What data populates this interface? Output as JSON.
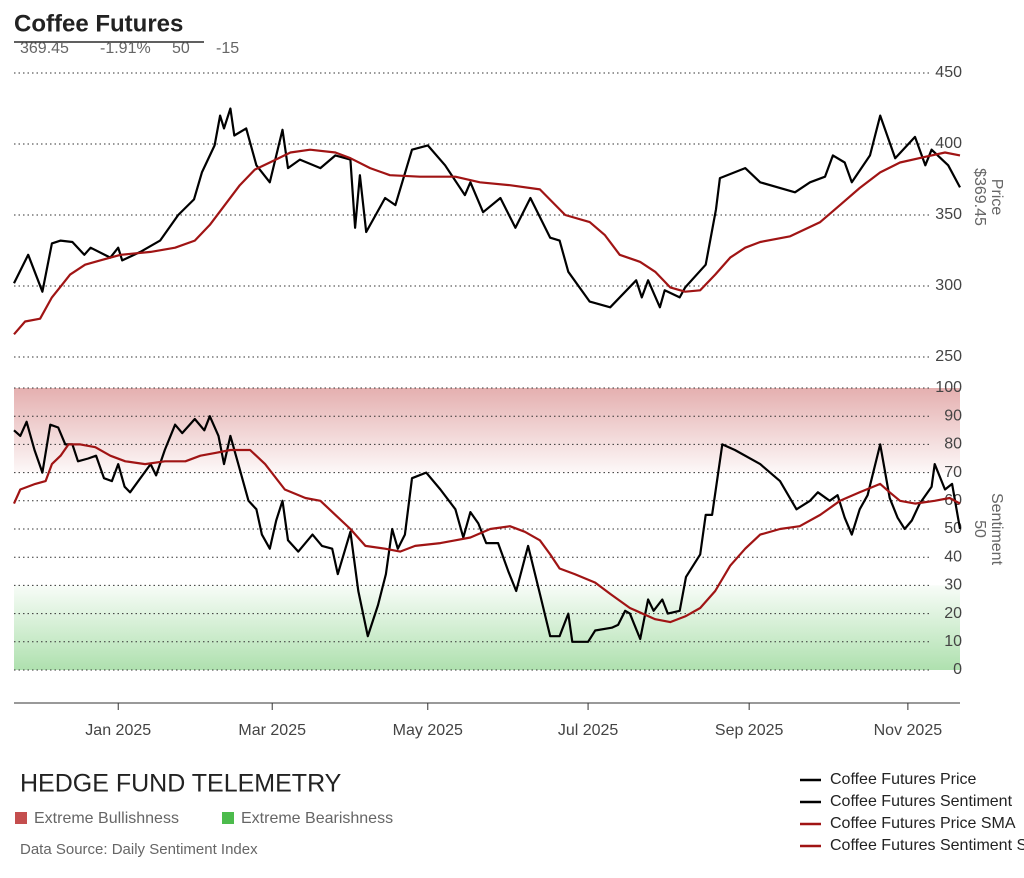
{
  "header": {
    "title": "Coffee Futures",
    "stats": [
      "369.45",
      "-1.91%",
      "50",
      "-15"
    ]
  },
  "brand": "HEDGE FUND TELEMETRY",
  "source": "Data Source: Daily Sentiment Index",
  "chart_data": [
    {
      "type": "line",
      "y_label": "Price",
      "last_label": "$369.45",
      "xlim": [
        -1.32,
        10.66
      ],
      "ylim": [
        250,
        450
      ],
      "yticks": [
        250,
        300,
        350,
        400,
        450
      ],
      "grid": true,
      "series": [
        {
          "name": "Coffee Futures Price",
          "color": "#000000",
          "x": [
            -1.32,
            -1.14,
            -0.96,
            -0.84,
            -0.73,
            -0.58,
            -0.43,
            -0.35,
            -0.1,
            0.0,
            0.05,
            0.28,
            0.53,
            0.76,
            0.96,
            1.06,
            1.22,
            1.29,
            1.34,
            1.42,
            1.47,
            1.62,
            1.75,
            1.92,
            2.08,
            2.15,
            2.3,
            2.56,
            2.75,
            2.94,
            3.0,
            3.06,
            3.14,
            3.38,
            3.51,
            3.72,
            3.92,
            4.14,
            4.39,
            4.46,
            4.62,
            4.84,
            5.03,
            5.22,
            5.47,
            5.59,
            5.7,
            5.97,
            6.23,
            6.56,
            6.63,
            6.71,
            6.86,
            6.92,
            7.11,
            7.18,
            7.44,
            7.57,
            7.62,
            7.94,
            8.13,
            8.57,
            8.76,
            8.95,
            9.05,
            9.2,
            9.29,
            9.52,
            9.65,
            9.84,
            10.09,
            10.22,
            10.3,
            10.51,
            10.66
          ],
          "values": [
            302,
            322,
            296,
            330,
            332,
            331,
            322,
            327,
            320,
            327,
            318,
            324,
            332,
            350,
            361,
            380,
            399,
            420,
            411,
            425,
            406,
            411,
            385,
            373,
            410,
            383,
            389,
            383,
            392,
            389,
            341,
            378,
            338,
            362,
            357,
            396,
            399,
            385,
            364,
            373,
            352,
            362,
            341,
            362,
            334,
            332,
            310,
            289,
            285,
            304,
            292,
            304,
            285,
            297,
            292,
            299,
            315,
            354,
            376,
            383,
            373,
            366,
            373,
            377,
            392,
            387,
            373,
            392,
            420,
            390,
            405,
            385,
            396,
            385,
            369.45
          ]
        },
        {
          "name": "Coffee Futures Price SMA",
          "color": "#a01414",
          "x": [
            -1.32,
            -1.18,
            -0.99,
            -0.84,
            -0.71,
            -0.61,
            -0.42,
            -0.23,
            0.03,
            0.41,
            0.72,
            0.97,
            1.16,
            1.35,
            1.54,
            1.73,
            1.92,
            2.18,
            2.43,
            2.75,
            2.94,
            3.19,
            3.44,
            3.82,
            4.27,
            4.58,
            4.96,
            5.34,
            5.66,
            5.97,
            6.16,
            6.35,
            6.61,
            6.8,
            6.99,
            7.18,
            7.37,
            7.56,
            7.75,
            7.94,
            8.13,
            8.51,
            8.89,
            9.14,
            9.39,
            9.65,
            9.9,
            10.22,
            10.47,
            10.66
          ],
          "values": [
            266,
            275,
            277,
            292,
            301,
            308,
            315,
            318,
            322,
            324,
            327,
            332,
            343,
            357,
            371,
            382,
            387,
            394,
            396,
            394,
            390,
            383,
            378,
            377,
            377,
            373,
            371,
            368,
            350,
            345,
            336,
            322,
            317,
            310,
            299,
            296,
            297,
            308,
            320,
            327,
            331,
            335,
            345,
            357,
            369,
            380,
            387,
            391,
            394,
            392
          ]
        }
      ]
    },
    {
      "type": "line",
      "y_label": "Sentiment",
      "last_label": "50",
      "xlim": [
        -1.32,
        10.66
      ],
      "ylim": [
        0,
        100
      ],
      "yticks": [
        0,
        10,
        20,
        30,
        40,
        50,
        60,
        70,
        80,
        90,
        100
      ],
      "grid": true,
      "xticks": [
        {
          "value": 0,
          "label": "Jan 2025"
        },
        {
          "value": 1.95,
          "label": "Mar 2025"
        },
        {
          "value": 3.92,
          "label": "May 2025"
        },
        {
          "value": 5.95,
          "label": "Jul 2025"
        },
        {
          "value": 7.99,
          "label": "Sep 2025"
        },
        {
          "value": 10,
          "label": "Nov 2025"
        }
      ],
      "zones": [
        {
          "name": "Extreme Bullishness",
          "range": [
            70,
            100
          ],
          "color": "#c44e4e"
        },
        {
          "name": "Extreme Bearishness",
          "range": [
            0,
            30
          ],
          "color": "#4cbb4c"
        }
      ],
      "series": [
        {
          "name": "Coffee Futures Sentiment",
          "color": "#000000",
          "x": [
            -1.32,
            -1.24,
            -1.16,
            -1.06,
            -0.96,
            -0.86,
            -0.76,
            -0.67,
            -0.58,
            -0.51,
            -0.38,
            -0.28,
            -0.18,
            -0.08,
            0,
            0.08,
            0.15,
            0.41,
            0.48,
            0.59,
            0.72,
            0.81,
            0.97,
            1.09,
            1.16,
            1.27,
            1.34,
            1.42,
            1.52,
            1.65,
            1.75,
            1.82,
            1.92,
            2.0,
            2.08,
            2.15,
            2.28,
            2.46,
            2.58,
            2.71,
            2.78,
            2.94,
            3.04,
            3.16,
            3.29,
            3.39,
            3.47,
            3.54,
            3.63,
            3.72,
            3.9,
            4.08,
            4.27,
            4.37,
            4.46,
            4.56,
            4.66,
            4.81,
            4.94,
            5.04,
            5.19,
            5.34,
            5.47,
            5.59,
            5.7,
            5.75,
            5.95,
            6.04,
            6.25,
            6.33,
            6.42,
            6.48,
            6.61,
            6.71,
            6.78,
            6.89,
            6.96,
            7.11,
            7.19,
            7.37,
            7.44,
            7.52,
            7.65,
            7.81,
            8.13,
            8.38,
            8.59,
            8.76,
            8.86,
            9.01,
            9.11,
            9.2,
            9.29,
            9.39,
            9.49,
            9.65,
            9.77,
            9.87,
            9.96,
            10.05,
            10.15,
            10.3,
            10.34,
            10.47,
            10.56,
            10.66
          ],
          "values": [
            85,
            83,
            88,
            78,
            70,
            87,
            86,
            80,
            80,
            74,
            75,
            76,
            68,
            67,
            73,
            65,
            63,
            73,
            69,
            78,
            87,
            84,
            89,
            85,
            90,
            83,
            73,
            83,
            73,
            60,
            57,
            48,
            43,
            53,
            60,
            46,
            42,
            48,
            44,
            43,
            34,
            49,
            28,
            12,
            23,
            34,
            50,
            43,
            48,
            68,
            70,
            64,
            57,
            47,
            56,
            52,
            45,
            45,
            35,
            28,
            44,
            27,
            12,
            12,
            20,
            10,
            10,
            14,
            15,
            16,
            21,
            20,
            11,
            25,
            21,
            25,
            20,
            21,
            33,
            41,
            55,
            55,
            80,
            78,
            73,
            67,
            57,
            60,
            63,
            60,
            62,
            54,
            48,
            57,
            62,
            80,
            61,
            54,
            50,
            53,
            59,
            65,
            73,
            64,
            66,
            50
          ]
        },
        {
          "name": "Coffee Futures Sentiment SMA",
          "color": "#a01414",
          "x": [
            -1.32,
            -1.24,
            -1.05,
            -0.92,
            -0.84,
            -0.73,
            -0.63,
            -0.48,
            -0.29,
            -0.1,
            0.09,
            0.34,
            0.59,
            0.85,
            1.04,
            1.23,
            1.42,
            1.67,
            1.86,
            2.11,
            2.37,
            2.56,
            2.75,
            2.94,
            3.13,
            3.38,
            3.57,
            3.76,
            4.08,
            4.27,
            4.46,
            4.71,
            4.96,
            5.15,
            5.34,
            5.47,
            5.59,
            5.78,
            6.04,
            6.23,
            6.48,
            6.8,
            6.99,
            7.18,
            7.37,
            7.56,
            7.75,
            7.94,
            8.13,
            8.38,
            8.63,
            8.89,
            9.14,
            9.39,
            9.65,
            9.77,
            9.9,
            10.09,
            10.34,
            10.53,
            10.66
          ],
          "values": [
            59,
            64,
            66,
            67,
            73,
            76,
            80,
            80,
            79,
            76,
            74,
            73,
            74,
            74,
            76,
            77,
            78,
            78,
            73,
            64,
            61,
            60,
            55,
            50,
            44,
            43,
            42,
            44,
            45,
            46,
            47,
            50,
            51,
            49,
            46,
            41,
            36,
            34,
            31,
            27,
            22,
            18,
            17,
            19,
            22,
            28,
            37,
            43,
            48,
            50,
            51,
            55,
            60,
            63,
            66,
            63,
            60,
            59,
            60,
            61,
            59
          ]
        }
      ]
    }
  ]
}
